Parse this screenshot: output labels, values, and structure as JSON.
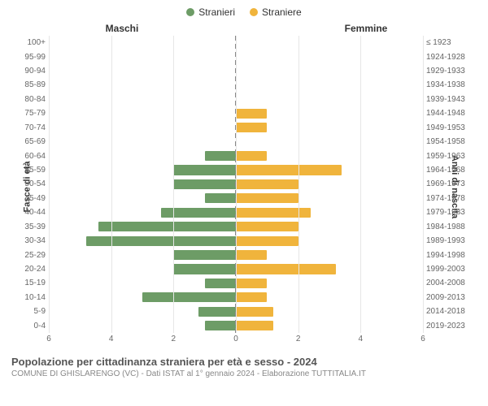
{
  "legend": {
    "male": {
      "label": "Stranieri",
      "color": "#6d9c66"
    },
    "female": {
      "label": "Straniere",
      "color": "#f0b43c"
    }
  },
  "gender_headers": {
    "male": "Maschi",
    "female": "Femmine"
  },
  "y_axis_left_title": "Fasce di età",
  "y_axis_right_title": "Anni di nascita",
  "chart": {
    "type": "population-pyramid",
    "x_max": 6,
    "x_ticks": [
      6,
      4,
      2,
      0,
      2,
      4,
      6
    ],
    "background": "#ffffff",
    "grid_color": "#e6e6e6",
    "center_dash_color": "#888888",
    "age_label_color": "#666666",
    "age_label_fontsize": 10,
    "rows": [
      {
        "age": "100+",
        "birth": "≤ 1923",
        "m": 0,
        "f": 0
      },
      {
        "age": "95-99",
        "birth": "1924-1928",
        "m": 0,
        "f": 0
      },
      {
        "age": "90-94",
        "birth": "1929-1933",
        "m": 0,
        "f": 0
      },
      {
        "age": "85-89",
        "birth": "1934-1938",
        "m": 0,
        "f": 0
      },
      {
        "age": "80-84",
        "birth": "1939-1943",
        "m": 0,
        "f": 0
      },
      {
        "age": "75-79",
        "birth": "1944-1948",
        "m": 0,
        "f": 1
      },
      {
        "age": "70-74",
        "birth": "1949-1953",
        "m": 0,
        "f": 1
      },
      {
        "age": "65-69",
        "birth": "1954-1958",
        "m": 0,
        "f": 0
      },
      {
        "age": "60-64",
        "birth": "1959-1963",
        "m": 1,
        "f": 1
      },
      {
        "age": "55-59",
        "birth": "1964-1968",
        "m": 2,
        "f": 3.4
      },
      {
        "age": "50-54",
        "birth": "1969-1973",
        "m": 2,
        "f": 2
      },
      {
        "age": "45-49",
        "birth": "1974-1978",
        "m": 1,
        "f": 2
      },
      {
        "age": "40-44",
        "birth": "1979-1983",
        "m": 2.4,
        "f": 2.4
      },
      {
        "age": "35-39",
        "birth": "1984-1988",
        "m": 4.4,
        "f": 2
      },
      {
        "age": "30-34",
        "birth": "1989-1993",
        "m": 4.8,
        "f": 2
      },
      {
        "age": "25-29",
        "birth": "1994-1998",
        "m": 2,
        "f": 1
      },
      {
        "age": "20-24",
        "birth": "1999-2003",
        "m": 2,
        "f": 3.2
      },
      {
        "age": "15-19",
        "birth": "2004-2008",
        "m": 1,
        "f": 1
      },
      {
        "age": "10-14",
        "birth": "2009-2013",
        "m": 3,
        "f": 1
      },
      {
        "age": "5-9",
        "birth": "2014-2018",
        "m": 1.2,
        "f": 1.2
      },
      {
        "age": "0-4",
        "birth": "2019-2023",
        "m": 1,
        "f": 1.2
      }
    ]
  },
  "footer": {
    "title": "Popolazione per cittadinanza straniera per età e sesso - 2024",
    "subtitle": "COMUNE DI GHISLARENGO (VC) - Dati ISTAT al 1° gennaio 2024 - Elaborazione TUTTITALIA.IT"
  }
}
